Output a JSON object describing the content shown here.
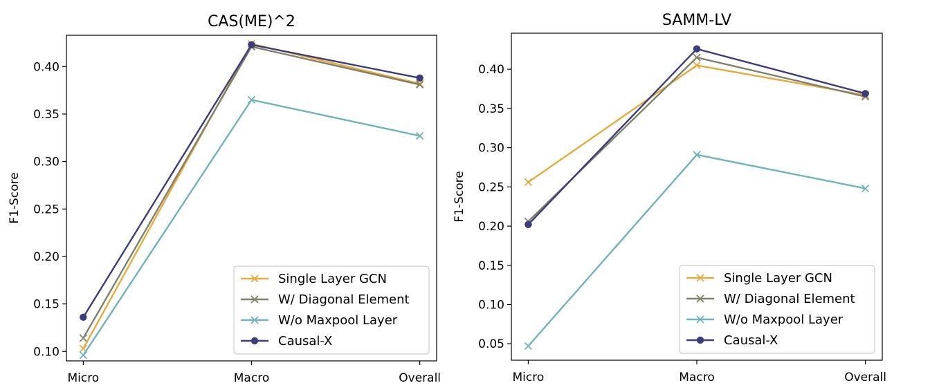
{
  "chart_data": [
    {
      "type": "line",
      "title": "CAS(ME)^2",
      "xlabel": "",
      "ylabel": "F1-Score",
      "categories": [
        "Micro",
        "Macro",
        "Overall"
      ],
      "ylim": [
        0.09,
        0.433
      ],
      "yticks": [
        "0.10",
        "0.15",
        "0.20",
        "0.25",
        "0.30",
        "0.35",
        "0.40"
      ],
      "legend_position": "lower-right",
      "series": [
        {
          "name": "Single Layer GCN",
          "values": [
            0.103,
            0.424,
            0.382
          ],
          "color": "#e6ab3c",
          "marker": "x"
        },
        {
          "name": "W/ Diagonal Element",
          "values": [
            0.114,
            0.421,
            0.381
          ],
          "color": "#80806a",
          "marker": "x"
        },
        {
          "name": "W/o Maxpool Layer",
          "values": [
            0.096,
            0.365,
            0.327
          ],
          "color": "#6fb3bc",
          "marker": "x"
        },
        {
          "name": "Causal-X",
          "values": [
            0.136,
            0.423,
            0.388
          ],
          "color": "#3c3c7c",
          "marker": "o"
        }
      ]
    },
    {
      "type": "line",
      "title": "SAMM-LV",
      "xlabel": "",
      "ylabel": "F1-Score",
      "categories": [
        "Micro",
        "Macro",
        "Overall"
      ],
      "ylim": [
        0.029,
        0.446
      ],
      "yticks": [
        "0.05",
        "0.10",
        "0.15",
        "0.20",
        "0.25",
        "0.30",
        "0.35",
        "0.40"
      ],
      "legend_position": "lower-right",
      "series": [
        {
          "name": "Single Layer GCN",
          "values": [
            0.256,
            0.405,
            0.367
          ],
          "color": "#e6ab3c",
          "marker": "x"
        },
        {
          "name": "W/ Diagonal Element",
          "values": [
            0.206,
            0.415,
            0.365
          ],
          "color": "#80806a",
          "marker": "x"
        },
        {
          "name": "W/o Maxpool Layer",
          "values": [
            0.047,
            0.291,
            0.248
          ],
          "color": "#6fb3bc",
          "marker": "x"
        },
        {
          "name": "Causal-X",
          "values": [
            0.202,
            0.426,
            0.369
          ],
          "color": "#3c3c7c",
          "marker": "o"
        }
      ]
    }
  ]
}
